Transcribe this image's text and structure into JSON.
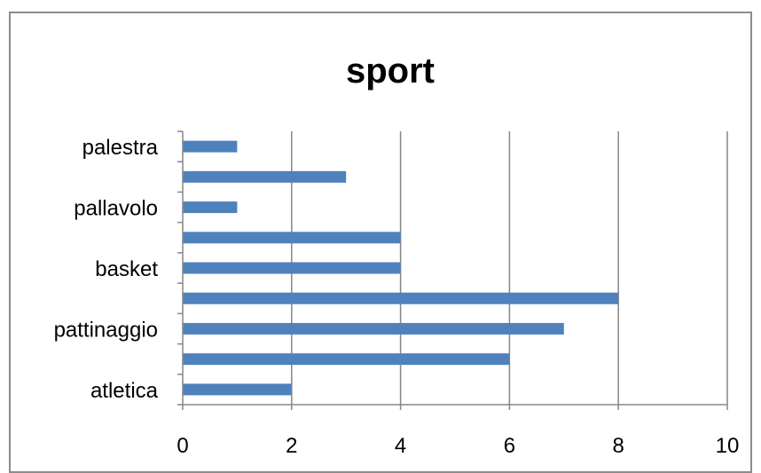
{
  "chart_data": {
    "type": "bar",
    "orientation": "horizontal",
    "title": "sport",
    "categories": [
      "atletica",
      "",
      "pattinaggio",
      "",
      "basket",
      "",
      "pallavolo",
      "",
      "palestra"
    ],
    "values": [
      2,
      6,
      7,
      8,
      4,
      4,
      1,
      3,
      1
    ],
    "xlim": [
      0,
      10
    ],
    "x_ticks": [
      0,
      2,
      4,
      6,
      8,
      10
    ],
    "grid": "vertical",
    "legend": "none",
    "bar_color": "#4f81bd",
    "grid_color": "#868686"
  }
}
